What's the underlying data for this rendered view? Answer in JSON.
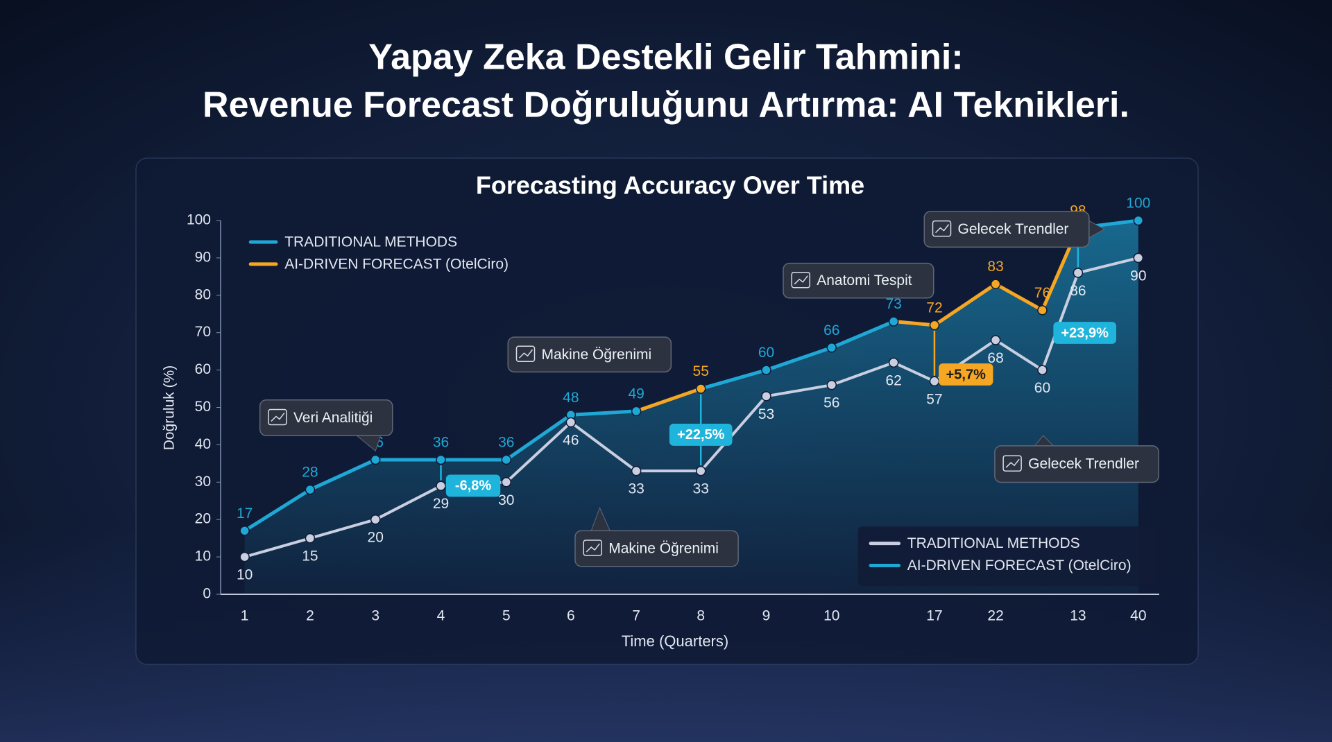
{
  "chart_data": {
    "type": "line",
    "headline": [
      "Yapay Zeka Destekli Gelir Tahmini:",
      "Revenue Forecast Doğruluğunu Artırma: AI Teknikleri."
    ],
    "title": "Forecasting Accuracy Over Time",
    "ylabel": "Doğruluk (%)",
    "xlabel": "Time (Quarters)",
    "categories": [
      "1",
      "2",
      "3",
      "4",
      "5",
      "6",
      "7",
      "8",
      "9",
      "10",
      null,
      "17",
      "22",
      null,
      "13",
      "40"
    ],
    "series": [
      {
        "name": "AI-DRIVEN FORECAST (OtelCiro)",
        "color": "#1fa8d6",
        "values": [
          17,
          28,
          36,
          36,
          36,
          48,
          49,
          55,
          60,
          66,
          73,
          72,
          83,
          76,
          98,
          100
        ],
        "segment_colors": [
          "#1fa8d6",
          "#1fa8d6",
          "#1fa8d6",
          "#1fa8d6",
          "#1fa8d6",
          "#1fa8d6",
          "#f5a623",
          "#1fa8d6",
          "#1fa8d6",
          "#1fa8d6",
          "#f5a623",
          "#f5a623",
          "#f5a623",
          "#f5a623",
          "#1fa8d6"
        ]
      },
      {
        "name": "TRADITIONAL METHODS",
        "color": "#c9cfe0",
        "values": [
          10,
          15,
          20,
          29,
          30,
          46,
          33,
          33,
          53,
          56,
          62,
          57,
          68,
          60,
          86,
          90
        ]
      }
    ],
    "ylim": [
      0,
      100
    ],
    "yticks": [
      0,
      10,
      20,
      30,
      40,
      50,
      60,
      70,
      80,
      90,
      100
    ],
    "grid": false,
    "legend": "lower right",
    "top_legend": {
      "position": "upper left",
      "entries": [
        {
          "name": "TRADITIONAL METHODS",
          "color": "#1fa8d6"
        },
        {
          "name": "AI-DRIVEN FORECAST (OtelCiro)",
          "color": "#f5a623"
        }
      ]
    },
    "callouts": [
      "Veri Analitiği",
      "Makine Öğrenimi",
      "Makine Öğrenimi",
      "Anatomi Tespit",
      "Gelecek Trendler",
      "Gelecek Trendler"
    ],
    "badges": [
      {
        "text": "-6,8%",
        "color": "#1fb4dc"
      },
      {
        "text": "+22,5%",
        "color": "#1fb4dc"
      },
      {
        "text": "+5,7%",
        "color": "#f5a623"
      },
      {
        "text": "+23,9%",
        "color": "#1fb4dc"
      }
    ]
  }
}
